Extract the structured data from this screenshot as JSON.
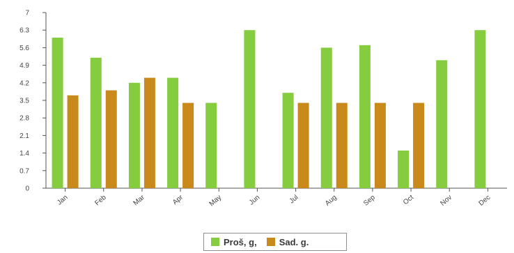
{
  "chart_data": {
    "type": "bar",
    "categories": [
      "Jan",
      "Feb",
      "Mar",
      "Apr",
      "May",
      "Jun",
      "Jul",
      "Aug",
      "Sep",
      "Oct",
      "Nov",
      "Dec"
    ],
    "series": [
      {
        "name": "Proš, g,",
        "color": "#86cc3f",
        "values": [
          6.0,
          5.2,
          4.2,
          4.4,
          3.4,
          6.3,
          3.8,
          5.6,
          5.7,
          1.5,
          5.1,
          6.3
        ]
      },
      {
        "name": "Sad. g.",
        "color": "#c98a1b",
        "values": [
          3.7,
          3.9,
          4.4,
          3.4,
          null,
          null,
          3.4,
          3.4,
          3.4,
          3.4,
          null,
          null
        ]
      }
    ],
    "yticks": [
      "0",
      "0.7",
      "1.4",
      "2.1",
      "2.8",
      "3.5",
      "4.2",
      "4.9",
      "5.6",
      "6.3",
      "7"
    ],
    "ylim": [
      0,
      7
    ],
    "legend_position": "bottom-center",
    "grid": false
  }
}
